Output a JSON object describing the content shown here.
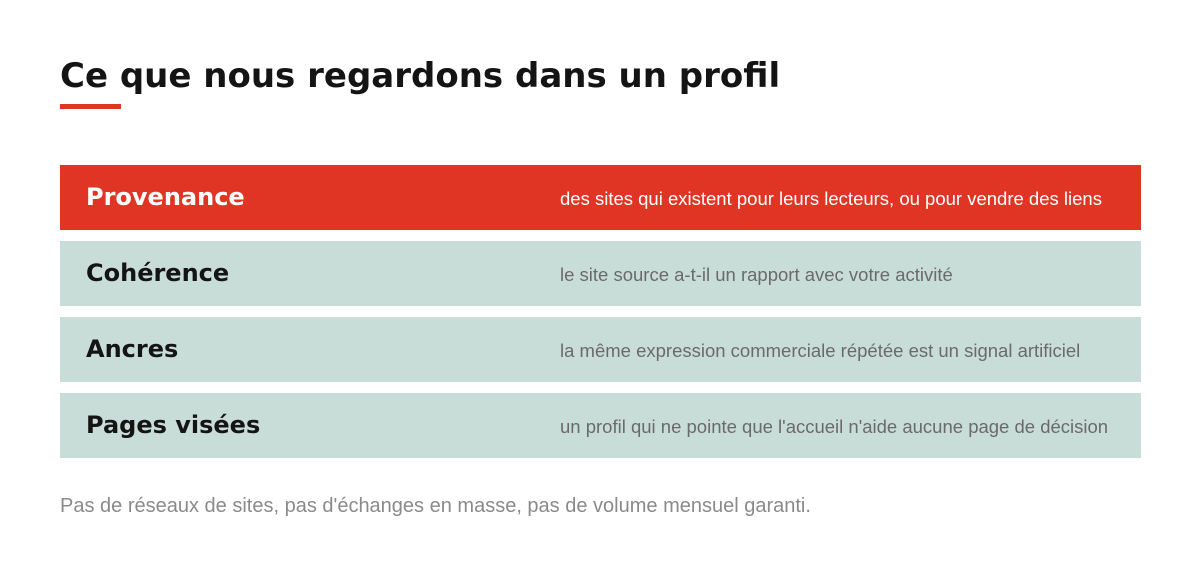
{
  "page": {
    "title": "Ce que nous regardons dans un profil",
    "footnote": "Pas de réseaux de sites, pas d'échanges en masse, pas de volume mensuel garanti."
  },
  "colors": {
    "accent": "#e03524",
    "row_background": "#c9ddd8",
    "title_text": "#141414",
    "row_name_text": "#141414",
    "row_desc_text": "#6a6a6a",
    "highlight_text": "#ffffff",
    "footnote_text": "#8a8a8a"
  },
  "criteria": [
    {
      "name": "Provenance",
      "description": "des sites qui existent pour leurs lecteurs, ou pour vendre des liens",
      "highlighted": true
    },
    {
      "name": "Cohérence",
      "description": "le site source a-t-il un rapport avec votre activité",
      "highlighted": false
    },
    {
      "name": "Ancres",
      "description": "la même expression commerciale répétée est un signal artificiel",
      "highlighted": false
    },
    {
      "name": "Pages visées",
      "description": "un profil qui ne pointe que l'accueil n'aide aucune page de décision",
      "highlighted": false
    }
  ]
}
